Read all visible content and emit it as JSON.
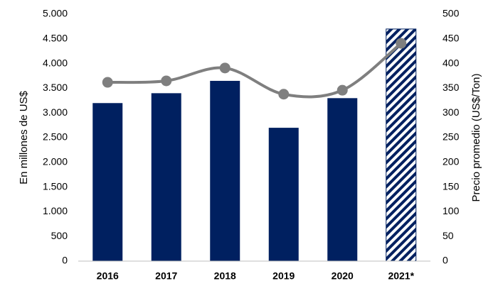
{
  "chart_data": {
    "type": "bar_line",
    "categories": [
      "2016",
      "2017",
      "2018",
      "2019",
      "2020",
      "2021*"
    ],
    "ylabel": "En millones de US$",
    "y2label": "Precio promedio (US$/Ton)",
    "ylim": [
      0,
      5000
    ],
    "yticks": [
      0,
      500,
      {
        "value": 1000,
        "label": "1.000"
      },
      {
        "value": 1500,
        "label": "1.500"
      },
      {
        "value": 2000,
        "label": "2.000"
      },
      {
        "value": 2500,
        "label": "2.500"
      },
      {
        "value": 3000,
        "label": "3.000"
      },
      {
        "value": 3500,
        "label": "3.500"
      },
      {
        "value": 4000,
        "label": "4.000"
      },
      {
        "value": 4500,
        "label": "4.500"
      },
      {
        "value": 5000,
        "label": "5.000"
      }
    ],
    "y2lim": [
      0,
      500
    ],
    "y2ticks": [
      0,
      50,
      100,
      150,
      200,
      250,
      300,
      350,
      400,
      450,
      500
    ],
    "series": [
      {
        "type": "bar",
        "color": "#002060",
        "hatched": [
          false,
          false,
          false,
          false,
          false,
          true
        ],
        "values": [
          3200,
          3400,
          3650,
          2700,
          3300,
          4700
        ]
      },
      {
        "type": "line",
        "axis": "y2",
        "color": "#7f7f7f",
        "smooth": true,
        "values": [
          362,
          365,
          391,
          338,
          346,
          441
        ]
      }
    ]
  }
}
